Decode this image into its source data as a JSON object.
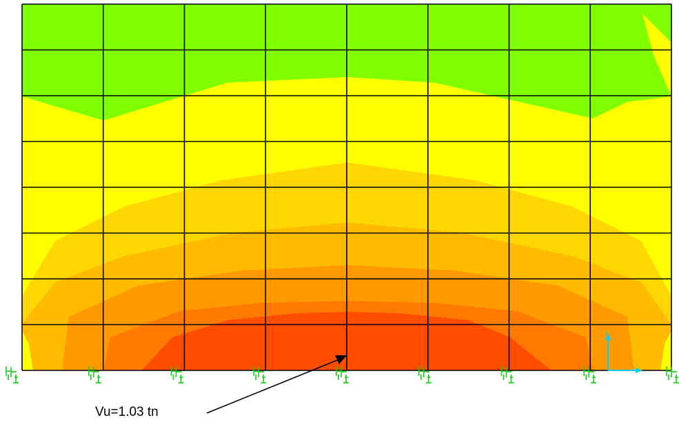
{
  "annotation": {
    "text": "Vu=1.03 tn"
  },
  "mesh": {
    "columns": 8,
    "rows": 8
  },
  "support_count": 9,
  "contour_colors": {
    "green": "#80ff00",
    "yellow": "#ffff00",
    "yellow_orange": "#ffd700",
    "light_orange": "#ffbb00",
    "orange": "#ff9900",
    "dark_orange": "#ff7a00",
    "red_orange": "#ff4d00"
  },
  "support_color": "#10d010",
  "axis_color": "#00d0ff",
  "grid_color": "#000000"
}
